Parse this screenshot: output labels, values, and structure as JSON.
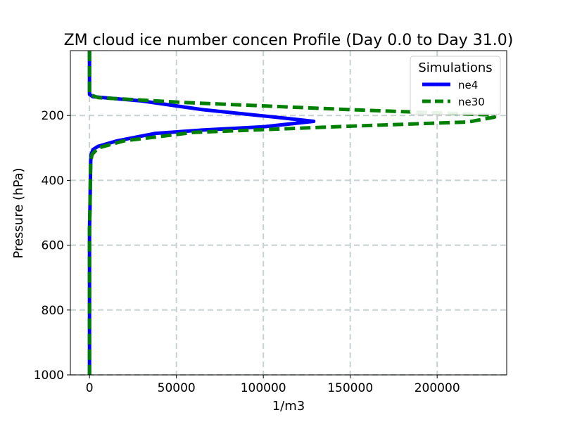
{
  "chart_data": {
    "type": "line",
    "title": "ZM cloud ice number concen Profile (Day 0.0 to Day 31.0)",
    "xlabel": "1/m3",
    "ylabel": "Pressure (hPa)",
    "xlim": [
      -11000,
      240000
    ],
    "ylim": [
      1000,
      0
    ],
    "y_inverted": true,
    "grid": true,
    "xticks": [
      0,
      50000,
      100000,
      150000,
      200000
    ],
    "xtick_labels": [
      "0",
      "50000",
      "100000",
      "150000",
      "200000"
    ],
    "yticks": [
      200,
      400,
      600,
      800,
      1000
    ],
    "ytick_labels": [
      "200",
      "400",
      "600",
      "800",
      "1000"
    ],
    "legend": {
      "title": "Simulations",
      "placement": "upper right"
    },
    "series": [
      {
        "name": "ne4",
        "color": "#0000ff",
        "style": "solid",
        "points": [
          [
            0,
            0
          ],
          [
            0,
            60
          ],
          [
            0,
            110
          ],
          [
            0,
            135
          ],
          [
            2000,
            142
          ],
          [
            30000,
            155
          ],
          [
            65000,
            182
          ],
          [
            110000,
            207
          ],
          [
            129000,
            218
          ],
          [
            100000,
            235
          ],
          [
            65000,
            245
          ],
          [
            38000,
            255
          ],
          [
            16000,
            278
          ],
          [
            5000,
            295
          ],
          [
            2000,
            305
          ],
          [
            1000,
            320
          ],
          [
            700,
            340
          ],
          [
            500,
            400
          ],
          [
            300,
            480
          ],
          [
            0,
            550
          ],
          [
            0,
            700
          ],
          [
            0,
            850
          ],
          [
            0,
            1000
          ]
        ]
      },
      {
        "name": "ne30",
        "color": "#008000",
        "style": "dashed",
        "points": [
          [
            0,
            0
          ],
          [
            0,
            60
          ],
          [
            0,
            110
          ],
          [
            0,
            135
          ],
          [
            5000,
            145
          ],
          [
            55000,
            160
          ],
          [
            150000,
            182
          ],
          [
            230000,
            198
          ],
          [
            233000,
            205
          ],
          [
            218000,
            220
          ],
          [
            150000,
            233
          ],
          [
            60000,
            252
          ],
          [
            20000,
            278
          ],
          [
            5000,
            300
          ],
          [
            1500,
            320
          ],
          [
            700,
            340
          ],
          [
            500,
            400
          ],
          [
            300,
            480
          ],
          [
            0,
            550
          ],
          [
            0,
            700
          ],
          [
            0,
            850
          ],
          [
            0,
            1000
          ]
        ]
      }
    ]
  }
}
